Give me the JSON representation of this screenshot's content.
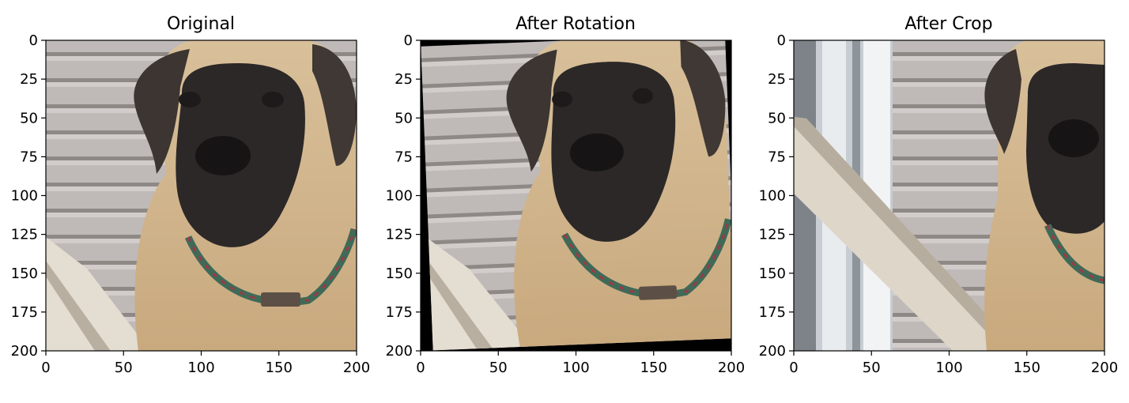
{
  "chart_data": [
    {
      "type": "image",
      "title": "Original",
      "xlim": [
        0,
        200
      ],
      "ylim": [
        200,
        0
      ],
      "xticks": [
        "0",
        "50",
        "100",
        "150",
        "200"
      ],
      "yticks": [
        "0",
        "25",
        "50",
        "75",
        "100",
        "125",
        "150",
        "175",
        "200"
      ],
      "image_description": "Close-up of a fawn mastiff dog with black muzzle and drooping ears, wearing a green and red collar; grey horizontal siding behind and a white wooden rail at the lower left."
    },
    {
      "type": "image",
      "title": "After Rotation",
      "xlim": [
        0,
        200
      ],
      "ylim": [
        200,
        0
      ],
      "xticks": [
        "0",
        "50",
        "100",
        "150",
        "200"
      ],
      "yticks": [
        "0",
        "25",
        "50",
        "75",
        "100",
        "125",
        "150",
        "175",
        "200"
      ],
      "image_description": "Same dog image slightly rotated, leaving thin black triangular wedges at the corners and edges."
    },
    {
      "type": "image",
      "title": "After Crop",
      "xlim": [
        0,
        200
      ],
      "ylim": [
        200,
        0
      ],
      "xticks": [
        "0",
        "50",
        "100",
        "150",
        "200"
      ],
      "yticks": [
        "0",
        "25",
        "50",
        "75",
        "100",
        "125",
        "150",
        "175",
        "200"
      ],
      "image_description": "Cropped region showing a white window frame and diagonal white wooden rail on the left, grey siding in the middle, and the dog's face at the right edge."
    }
  ]
}
